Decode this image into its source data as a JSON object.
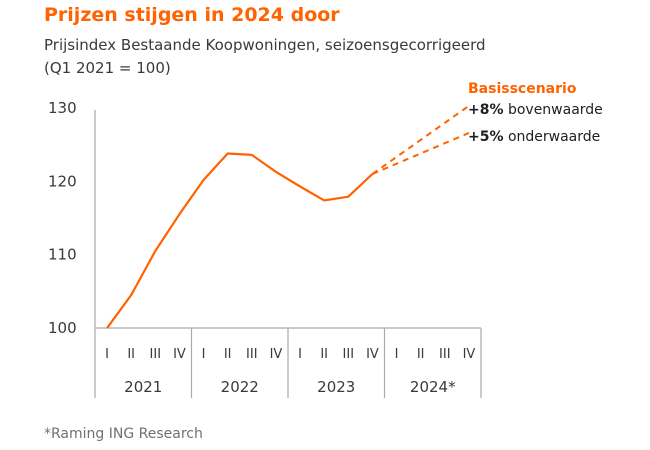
{
  "header": {
    "title": "Prijzen stijgen in 2024 door",
    "subtitle_line1": "Prijsindex Bestaande Koopwoningen, seizoensgecorrigeerd",
    "subtitle_line2": "(Q1 2021 = 100)"
  },
  "footnote": "*Raming ING Research",
  "colors": {
    "series": "#FF6200",
    "axis": "#aaaaaa",
    "text": "#3a3a3a"
  },
  "chart_data": {
    "type": "line",
    "title": "Prijzen stijgen in 2024 door",
    "subtitle": "Prijsindex Bestaande Koopwoningen, seizoensgecorrigeerd (Q1 2021 = 100)",
    "ylim": [
      100,
      130
    ],
    "yticks": [
      100,
      110,
      120,
      130
    ],
    "grid": false,
    "quarters": [
      "I",
      "II",
      "III",
      "IV",
      "I",
      "II",
      "III",
      "IV",
      "I",
      "II",
      "III",
      "IV",
      "I",
      "II",
      "III",
      "IV"
    ],
    "years": [
      "2021",
      "2022",
      "2023",
      "2024*"
    ],
    "series": [
      {
        "name": "",
        "style": "solid",
        "x": [
          "2021 I",
          "2021 II",
          "2021 III",
          "2021 IV",
          "2022 I",
          "2022 II",
          "2022 III",
          "2022 IV",
          "2023 I",
          "2023 II",
          "2023 III"
        ],
        "values": [
          100.0,
          104.5,
          110.5,
          115.5,
          120.2,
          123.8,
          123.6,
          121.3,
          119.3,
          117.4,
          117.9
        ]
      }
    ],
    "projections": {
      "title": "Basisscenario",
      "start": {
        "x": "2023 IV",
        "value": 121.0
      },
      "items": [
        {
          "bold": "+8%",
          "text": " bovenwaarde",
          "end_value": 130.3
        },
        {
          "bold": "+5%",
          "text": " onderwaarde",
          "end_value": 126.6
        }
      ],
      "end_x": "2024 IV"
    }
  }
}
